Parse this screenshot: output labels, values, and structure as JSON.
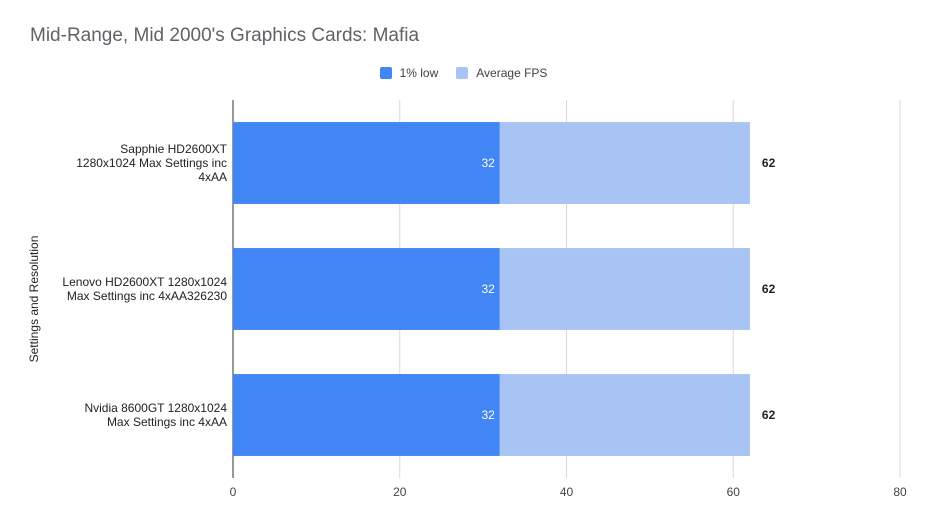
{
  "chart_data": {
    "type": "bar",
    "orientation": "horizontal",
    "stacked": true,
    "title": "Mid-Range, Mid 2000's Graphics Cards: Mafia",
    "xlabel": "",
    "ylabel": "Settings and Resolution",
    "xlim": [
      0,
      80
    ],
    "x_ticks": [
      "0",
      "20",
      "40",
      "60",
      "80"
    ],
    "grid": true,
    "legend_position": "top",
    "categories": [
      "Sapphie HD2600XT\n1280x1024 Max Settings inc\n4xAA",
      "Lenovo HD2600XT 1280x1024\nMax Settings inc  4xAA326230",
      "Nvidia 8600GT 1280x1024\nMax Settings inc  4xAA"
    ],
    "series": [
      {
        "name": "1% low",
        "color": "#4285f4",
        "values": [
          32,
          32,
          32
        ],
        "labels": [
          "32",
          "32",
          "32"
        ]
      },
      {
        "name": "Average FPS",
        "color": "#a8c4f5",
        "values": [
          30,
          30,
          30
        ],
        "totals": [
          "62",
          "62",
          "62"
        ]
      }
    ]
  }
}
